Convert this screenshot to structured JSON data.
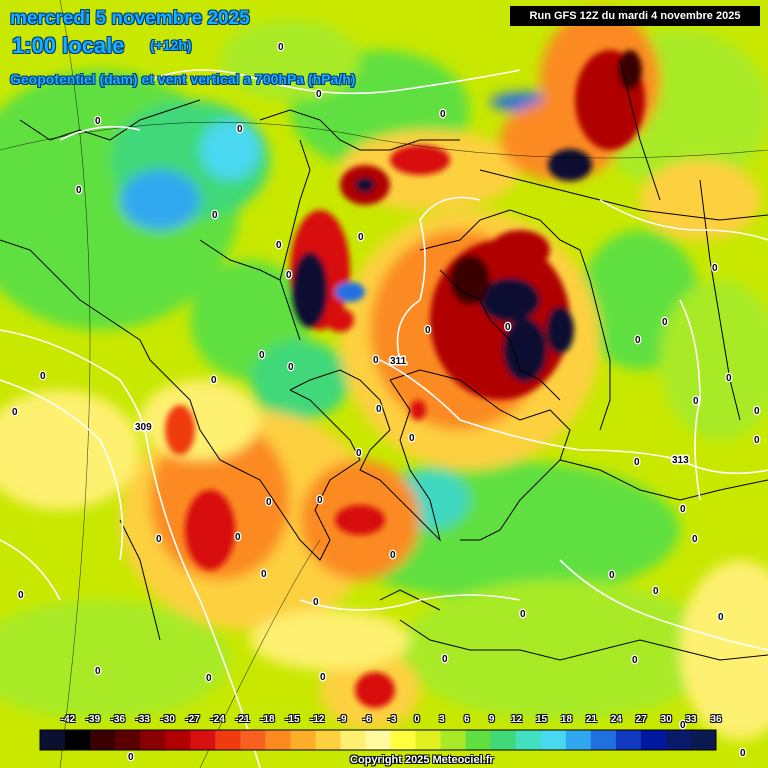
{
  "header": {
    "date": "mercredi 5 novembre 2025",
    "time": "1:00 locale",
    "lead": "(+12h)",
    "field": "Geopotentiel (dam) et vent vertical a 700hPa (hPa/h)"
  },
  "run_info": "Run GFS 12Z du mardi 4 novembre 2025",
  "copyright": "Copyright 2025 Meteociel.fr",
  "colors": {
    "background": "#c8e800",
    "title_text": "#1ab0ff"
  },
  "colorscale": {
    "labels": [
      "-42",
      "-39",
      "-36",
      "-33",
      "-30",
      "-27",
      "-24",
      "-21",
      "-18",
      "-15",
      "-12",
      "-9",
      "-6",
      "-3",
      "0",
      "3",
      "6",
      "9",
      "12",
      "15",
      "18",
      "21",
      "24",
      "27",
      "30",
      "33",
      "36"
    ],
    "colors": [
      "#0a1030",
      "#000000",
      "#3a0000",
      "#5a0000",
      "#8a0000",
      "#b00000",
      "#d81010",
      "#f03a10",
      "#f86020",
      "#fb8a20",
      "#fcae28",
      "#fdd040",
      "#fef070",
      "#fffaa0",
      "#ffff40",
      "#e0f020",
      "#a8ea28",
      "#60e040",
      "#40d878",
      "#40e0c0",
      "#48d8f0",
      "#30a8f0",
      "#2070e0",
      "#1038c0",
      "#0018a0",
      "#0a1a6a",
      "#0a1a50"
    ]
  },
  "contours": {
    "labels": [
      "309",
      "311",
      "313"
    ]
  },
  "zero_labels": [
    "0",
    "0",
    "0",
    "0",
    "0",
    "0",
    "0",
    "0",
    "0",
    "0",
    "0",
    "0",
    "0",
    "0",
    "0",
    "0",
    "0",
    "0",
    "0",
    "0",
    "0",
    "0",
    "0",
    "0",
    "0",
    "0",
    "0",
    "0",
    "0",
    "0",
    "0",
    "0",
    "0",
    "0",
    "0",
    "0",
    "0",
    "0",
    "0",
    "0",
    "0",
    "0",
    "0",
    "0",
    "0",
    "0",
    "0",
    "0",
    "0",
    "0",
    "0"
  ]
}
